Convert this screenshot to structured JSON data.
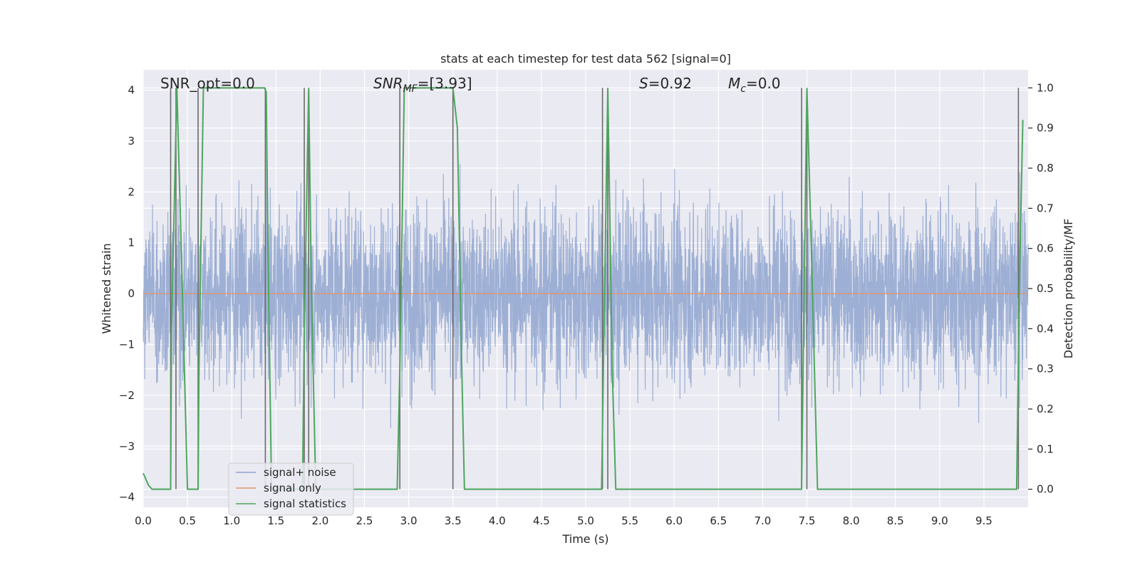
{
  "chart_data": {
    "type": "line",
    "title": "stats at each timestep for test data 562 [signal=0]",
    "xlabel": "Time (s)",
    "ylabel_left": "Whitened strain",
    "ylabel_right": "Detection probability/MF",
    "xlim": [
      0.0,
      10.0
    ],
    "ylim_left": [
      -4.2,
      4.4
    ],
    "ylim_right": [
      -0.045,
      1.045
    ],
    "xticks": [
      "0.0",
      "0.5",
      "1.0",
      "1.5",
      "2.0",
      "2.5",
      "3.0",
      "3.5",
      "4.0",
      "4.5",
      "5.0",
      "5.5",
      "6.0",
      "6.5",
      "7.0",
      "7.5",
      "8.0",
      "8.5",
      "9.0",
      "9.5"
    ],
    "yticks_left": [
      "4",
      "3",
      "2",
      "1",
      "0",
      "−1",
      "−2",
      "−3",
      "−4"
    ],
    "yticks_left_values": [
      4,
      3,
      2,
      1,
      0,
      -1,
      -2,
      -3,
      -4
    ],
    "yticks_right": [
      "1.0",
      "0.9",
      "0.8",
      "0.7",
      "0.6",
      "0.5",
      "0.4",
      "0.3",
      "0.2",
      "0.1",
      "0.0"
    ],
    "yticks_right_values": [
      1.0,
      0.9,
      0.8,
      0.7,
      0.6,
      0.5,
      0.4,
      0.3,
      0.2,
      0.1,
      0.0
    ],
    "grid": true,
    "legend_position": "lower-left",
    "annotations": {
      "snr_opt": "SNR_opt=0.0",
      "snr_mf_base": "SNR",
      "snr_mf_sub": "MF",
      "snr_mf_value": "=[3.93]",
      "s_var": "S",
      "s_value": "=0.92",
      "mc_var": "M",
      "mc_sub": "c",
      "mc_value": "=0.0"
    },
    "series": [
      {
        "name": "signal+ noise",
        "axis": "left",
        "color": "#8fa4cf",
        "kind": "noise",
        "samples": 4096,
        "envelope_std": 0.85,
        "range": [
          -3.8,
          3.4
        ]
      },
      {
        "name": "signal only",
        "axis": "left",
        "color": "#e0956f",
        "x": [
          0.0,
          10.0
        ],
        "y": [
          0.0,
          0.0
        ]
      },
      {
        "name": "signal statistics",
        "axis": "right",
        "color": "#4ea65e",
        "x": [
          0.0,
          0.06,
          0.1,
          0.31,
          0.32,
          0.38,
          0.43,
          0.5,
          0.62,
          0.63,
          0.68,
          1.37,
          1.39,
          1.41,
          1.45,
          1.8,
          1.82,
          1.87,
          1.9,
          1.95,
          2.85,
          2.87,
          2.9,
          2.95,
          3.5,
          3.55,
          3.6,
          3.63,
          5.18,
          5.2,
          5.25,
          5.3,
          5.34,
          7.44,
          7.46,
          7.5,
          7.55,
          7.62,
          9.87,
          9.9,
          9.94
        ],
        "y": [
          0.04,
          0.01,
          0.0,
          0.0,
          0.4,
          1.0,
          0.6,
          0.0,
          0.0,
          0.3,
          1.0,
          1.0,
          0.99,
          0.6,
          0.0,
          0.0,
          0.4,
          1.0,
          0.5,
          0.0,
          0.0,
          0.0,
          0.3,
          1.0,
          1.0,
          0.9,
          0.3,
          0.0,
          0.0,
          0.3,
          1.0,
          0.3,
          0.0,
          0.0,
          0.35,
          1.0,
          0.6,
          0.0,
          0.0,
          0.5,
          0.92
        ]
      }
    ],
    "vertical_markers": {
      "color": "#6b6b6b",
      "x": [
        0.31,
        0.37,
        0.62,
        1.38,
        1.82,
        1.87,
        2.9,
        3.5,
        5.19,
        5.25,
        7.44,
        7.5,
        9.89
      ]
    }
  }
}
